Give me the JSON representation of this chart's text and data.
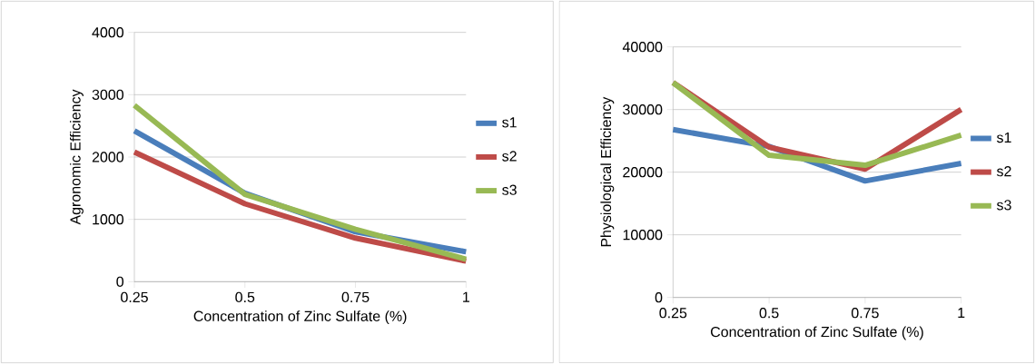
{
  "chart_data": [
    {
      "type": "line",
      "xlabel": "Concentration of Zinc Sulfate (%)",
      "ylabel": "Agronomic Efficiency",
      "categories": [
        "0.25",
        "0.5",
        "0.75",
        "1"
      ],
      "ylim": [
        0,
        4000
      ],
      "yticks": [
        0,
        1000,
        2000,
        3000,
        4000
      ],
      "grid": "y",
      "legend": "right",
      "marker": "none",
      "line_style": "solid",
      "series": [
        {
          "name": "s1",
          "color": "#4a7ebb",
          "values": [
            2420,
            1420,
            800,
            480
          ]
        },
        {
          "name": "s2",
          "color": "#be4b48",
          "values": [
            2080,
            1250,
            700,
            330
          ]
        },
        {
          "name": "s3",
          "color": "#98b954",
          "values": [
            2830,
            1400,
            840,
            360
          ]
        }
      ]
    },
    {
      "type": "line",
      "xlabel": "Concentration of Zinc Sulfate (%)",
      "ylabel": "Physiological Efficiency",
      "categories": [
        "0.25",
        "0.5",
        "0.75",
        "1"
      ],
      "ylim": [
        0,
        40000
      ],
      "yticks": [
        0,
        10000,
        20000,
        30000,
        40000
      ],
      "grid": "y",
      "legend": "right",
      "marker": "none",
      "line_style": "solid",
      "series": [
        {
          "name": "s1",
          "color": "#4a7ebb",
          "values": [
            26800,
            24100,
            18600,
            21400
          ]
        },
        {
          "name": "s2",
          "color": "#be4b48",
          "values": [
            34300,
            24000,
            20500,
            30000
          ]
        },
        {
          "name": "s3",
          "color": "#98b954",
          "values": [
            34300,
            22700,
            21100,
            25900
          ]
        }
      ]
    }
  ]
}
